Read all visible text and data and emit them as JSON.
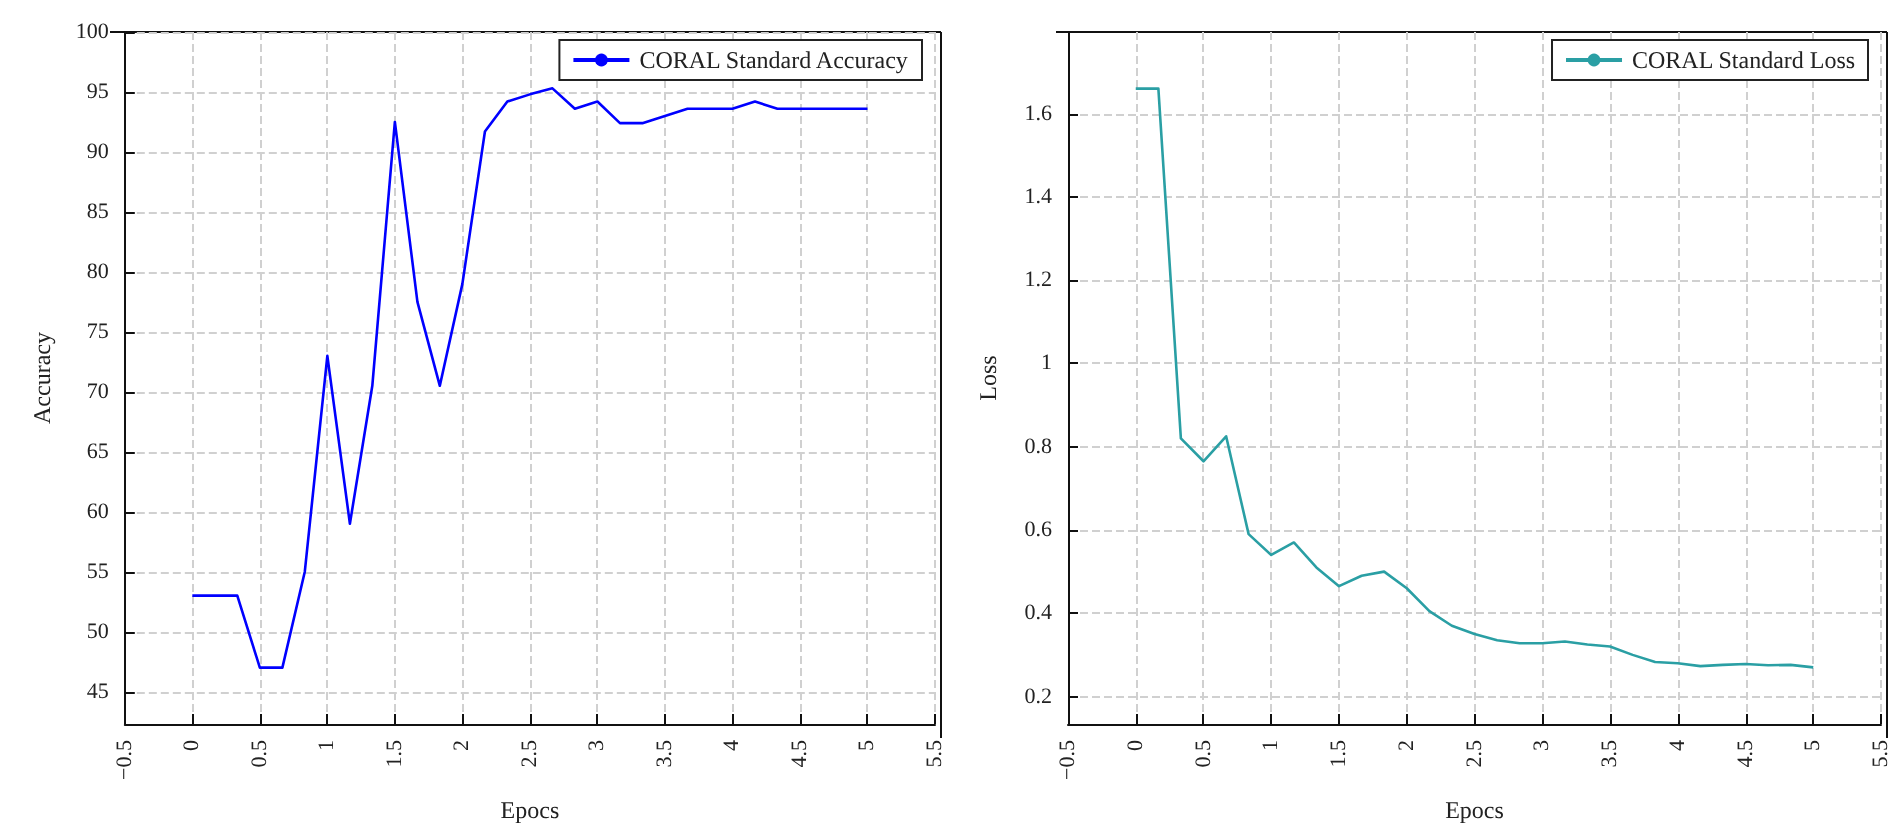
{
  "chart_data": [
    {
      "type": "line",
      "xlabel": "Epocs",
      "ylabel": "Accuracy",
      "x": [
        0,
        0.167,
        0.333,
        0.5,
        0.667,
        0.833,
        1,
        1.167,
        1.333,
        1.5,
        1.667,
        1.833,
        2,
        2.167,
        2.333,
        2.5,
        2.667,
        2.833,
        3,
        3.167,
        3.333,
        3.5,
        3.667,
        3.833,
        4,
        4.167,
        4.333,
        4.5,
        4.667,
        4.833,
        5
      ],
      "series": [
        {
          "name": "CORAL Standard Accuracy",
          "color": "#0000ff",
          "values": [
            53,
            53,
            53,
            47,
            47,
            55,
            73,
            59,
            70.5,
            92.5,
            77.5,
            70.5,
            79,
            91.7,
            94.2,
            94.8,
            95.3,
            93.6,
            94.2,
            92.4,
            92.4,
            93,
            93.6,
            93.6,
            93.6,
            94.2,
            93.6,
            93.6,
            93.6,
            93.6,
            93.6
          ]
        }
      ],
      "xlim": [
        -0.5,
        5.5
      ],
      "xticks": [
        -0.5,
        0,
        0.5,
        1,
        1.5,
        2,
        2.5,
        3,
        3.5,
        4,
        4.5,
        5,
        5.5
      ],
      "ylim": [
        42.3,
        100
      ],
      "yticks": [
        45,
        50,
        55,
        60,
        65,
        70,
        75,
        80,
        85,
        90,
        95,
        100
      ],
      "grid": true,
      "legend": "top right",
      "line_style": "solid"
    },
    {
      "type": "line",
      "xlabel": "Epocs",
      "ylabel": "Loss",
      "x": [
        0,
        0.167,
        0.333,
        0.5,
        0.667,
        0.833,
        1,
        1.167,
        1.333,
        1.5,
        1.667,
        1.833,
        2,
        2.167,
        2.333,
        2.5,
        2.667,
        2.833,
        3,
        3.167,
        3.333,
        3.5,
        3.667,
        3.833,
        4,
        4.167,
        4.333,
        4.5,
        4.667,
        4.833,
        5
      ],
      "series": [
        {
          "name": "CORAL Standard Loss",
          "color": "#2a9fa4",
          "values": [
            1.66,
            1.66,
            0.82,
            0.765,
            0.825,
            0.59,
            0.54,
            0.57,
            0.51,
            0.465,
            0.49,
            0.5,
            0.46,
            0.405,
            0.37,
            0.35,
            0.335,
            0.328,
            0.328,
            0.332,
            0.325,
            0.32,
            0.3,
            0.283,
            0.28,
            0.273,
            0.276,
            0.278,
            0.275,
            0.276,
            0.27
          ]
        }
      ],
      "xlim": [
        -0.5,
        5.5
      ],
      "xticks": [
        -0.5,
        0,
        0.5,
        1,
        1.5,
        2,
        2.5,
        3,
        3.5,
        4,
        4.5,
        5,
        5.5
      ],
      "ylim": [
        0.134,
        1.796
      ],
      "yticks": [
        0.2,
        0.4,
        0.6,
        0.8,
        1,
        1.2,
        1.4,
        1.6
      ],
      "grid": true,
      "legend": "top right",
      "line_style": "solid"
    }
  ]
}
